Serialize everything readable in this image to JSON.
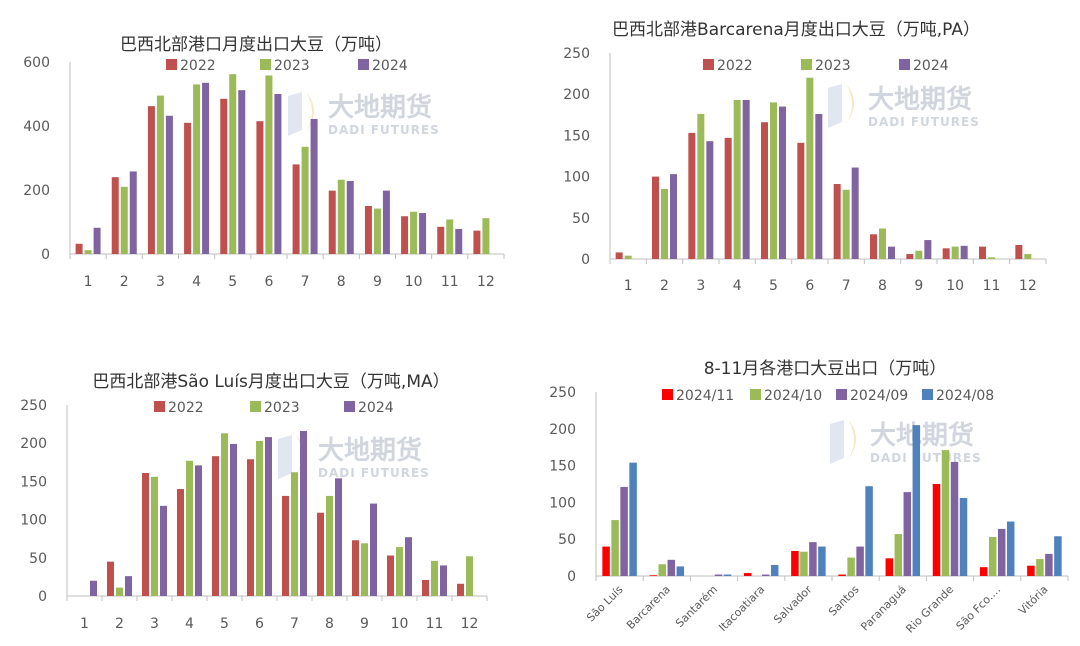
{
  "watermark": {
    "main": "大地期货",
    "sub": "DADI FUTURES"
  },
  "chart_data": [
    {
      "type": "bar",
      "title": "巴西北部港口月度出口大豆（万吨）",
      "categories": [
        "1",
        "2",
        "3",
        "4",
        "5",
        "6",
        "7",
        "8",
        "9",
        "10",
        "11",
        "12"
      ],
      "ylim": [
        0,
        600
      ],
      "yticks": [
        0,
        200,
        400,
        600
      ],
      "legend": "top-center",
      "series": [
        {
          "name": "2022",
          "color": "#c0504d",
          "values": [
            32,
            240,
            462,
            410,
            485,
            415,
            280,
            198,
            150,
            118,
            85,
            73
          ]
        },
        {
          "name": "2023",
          "color": "#9bbb59",
          "values": [
            12,
            210,
            495,
            530,
            562,
            558,
            335,
            232,
            142,
            132,
            108,
            112
          ]
        },
        {
          "name": "2024",
          "color": "#8064a2",
          "values": [
            82,
            258,
            432,
            535,
            512,
            500,
            422,
            228,
            198,
            128,
            78,
            null
          ]
        }
      ]
    },
    {
      "type": "bar",
      "title": "巴西北部港Barcarena月度出口大豆（万吨,PA）",
      "categories": [
        "1",
        "2",
        "3",
        "4",
        "5",
        "6",
        "7",
        "8",
        "9",
        "10",
        "11",
        "12"
      ],
      "ylim": [
        0,
        250
      ],
      "yticks": [
        0,
        50,
        100,
        150,
        200,
        250
      ],
      "legend": "top-center",
      "series": [
        {
          "name": "2022",
          "color": "#c0504d",
          "values": [
            8,
            100,
            153,
            147,
            166,
            141,
            91,
            30,
            6,
            13,
            15,
            17
          ]
        },
        {
          "name": "2023",
          "color": "#9bbb59",
          "values": [
            4,
            85,
            176,
            193,
            190,
            220,
            84,
            37,
            10,
            15,
            2,
            6
          ]
        },
        {
          "name": "2024",
          "color": "#8064a2",
          "values": [
            0,
            103,
            143,
            193,
            185,
            176,
            111,
            15,
            23,
            16,
            0,
            null
          ]
        }
      ]
    },
    {
      "type": "bar",
      "title": "巴西北部港São Luís月度出口大豆（万吨,MA）",
      "categories": [
        "1",
        "2",
        "3",
        "4",
        "5",
        "6",
        "7",
        "8",
        "9",
        "10",
        "11",
        "12"
      ],
      "ylim": [
        0,
        250
      ],
      "yticks": [
        0,
        50,
        100,
        150,
        200,
        250
      ],
      "legend": "top-center",
      "series": [
        {
          "name": "2022",
          "color": "#c0504d",
          "values": [
            0,
            45,
            161,
            140,
            183,
            179,
            131,
            109,
            73,
            53,
            21,
            16
          ]
        },
        {
          "name": "2023",
          "color": "#9bbb59",
          "values": [
            0,
            11,
            156,
            177,
            213,
            203,
            162,
            131,
            69,
            64,
            46,
            52
          ]
        },
        {
          "name": "2024",
          "color": "#8064a2",
          "values": [
            20,
            26,
            118,
            171,
            199,
            208,
            216,
            154,
            121,
            77,
            40,
            null
          ]
        }
      ]
    },
    {
      "type": "bar",
      "title": "8-11月各港口大豆出口（万吨）",
      "categories": [
        "São Luís",
        "Barcarena",
        "Santarém",
        "Itacoatiara",
        "Salvador",
        "Santos",
        "Paranaguá",
        "Rio Grande",
        "São Fco.…",
        "Vitória"
      ],
      "ylim": [
        0,
        250
      ],
      "yticks": [
        0,
        50,
        100,
        150,
        200,
        250
      ],
      "legend": "top-center",
      "series": [
        {
          "name": "2024/11",
          "color": "#ff0000",
          "values": [
            40,
            1,
            0,
            4,
            34,
            2,
            24,
            125,
            12,
            14
          ]
        },
        {
          "name": "2024/10",
          "color": "#9bbb59",
          "values": [
            76,
            16,
            0,
            0,
            33,
            25,
            57,
            171,
            53,
            23
          ]
        },
        {
          "name": "2024/09",
          "color": "#8064a2",
          "values": [
            121,
            22,
            2,
            2,
            46,
            40,
            114,
            155,
            64,
            30
          ]
        },
        {
          "name": "2024/08",
          "color": "#4f81bd",
          "values": [
            154,
            13,
            2,
            15,
            40,
            122,
            205,
            106,
            74,
            54
          ]
        }
      ]
    }
  ]
}
